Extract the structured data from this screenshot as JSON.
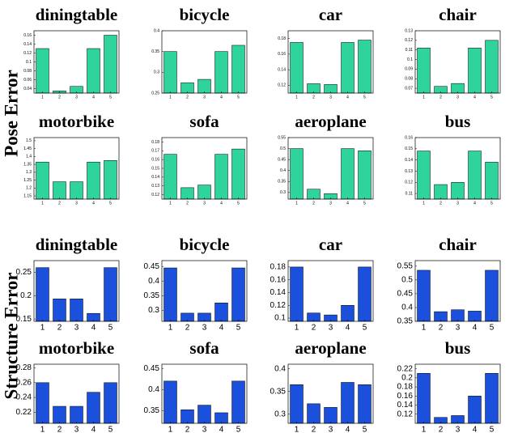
{
  "row_labels": [
    "Pose Error",
    "Structure Error"
  ],
  "chart_data": [
    {
      "type": "bar",
      "title": "diningtable",
      "categories": [
        "1",
        "2",
        "3",
        "4",
        "5"
      ],
      "values": [
        0.13,
        0.035,
        0.045,
        0.13,
        0.16
      ],
      "color": "#2fd39c",
      "ylim": [
        0.03,
        0.17
      ],
      "yticks": [
        0.04,
        0.06,
        0.08,
        0.1,
        0.12,
        0.14,
        0.16
      ]
    },
    {
      "type": "bar",
      "title": "bicycle",
      "categories": [
        "1",
        "2",
        "3",
        "4",
        "5"
      ],
      "values": [
        0.35,
        0.275,
        0.283,
        0.35,
        0.365
      ],
      "color": "#2fd39c",
      "ylim": [
        0.25,
        0.4
      ],
      "yticks": [
        0.25,
        0.3,
        0.35,
        0.4
      ]
    },
    {
      "type": "bar",
      "title": "car",
      "categories": [
        "1",
        "2",
        "3",
        "4",
        "5"
      ],
      "values": [
        0.175,
        0.122,
        0.121,
        0.175,
        0.178
      ],
      "color": "#2fd39c",
      "ylim": [
        0.11,
        0.19
      ],
      "yticks": [
        0.12,
        0.14,
        0.16,
        0.18
      ]
    },
    {
      "type": "bar",
      "title": "chair",
      "categories": [
        "1",
        "2",
        "3",
        "4",
        "5"
      ],
      "values": [
        0.112,
        0.072,
        0.075,
        0.112,
        0.12
      ],
      "color": "#2fd39c",
      "ylim": [
        0.065,
        0.13
      ],
      "yticks": [
        0.07,
        0.08,
        0.09,
        0.1,
        0.11,
        0.12,
        0.13
      ]
    },
    {
      "type": "bar",
      "title": "motorbike",
      "categories": [
        "1",
        "2",
        "3",
        "4",
        "5"
      ],
      "values": [
        1.365,
        1.24,
        1.24,
        1.365,
        1.375
      ],
      "color": "#2fd39c",
      "ylim": [
        1.13,
        1.52
      ],
      "yticks": [
        1.15,
        1.2,
        1.25,
        1.3,
        1.35,
        1.4,
        1.45,
        1.5
      ]
    },
    {
      "type": "bar",
      "title": "sofa",
      "categories": [
        "1",
        "2",
        "3",
        "4",
        "5"
      ],
      "values": [
        0.166,
        0.128,
        0.131,
        0.166,
        0.172
      ],
      "color": "#2fd39c",
      "ylim": [
        0.115,
        0.185
      ],
      "yticks": [
        0.12,
        0.13,
        0.14,
        0.15,
        0.16,
        0.17,
        0.18
      ]
    },
    {
      "type": "bar",
      "title": "aeroplane",
      "categories": [
        "1",
        "2",
        "3",
        "4",
        "5"
      ],
      "values": [
        0.5,
        0.315,
        0.295,
        0.5,
        0.49
      ],
      "color": "#2fd39c",
      "ylim": [
        0.27,
        0.55
      ],
      "yticks": [
        0.3,
        0.35,
        0.4,
        0.45,
        0.5,
        0.55
      ]
    },
    {
      "type": "bar",
      "title": "bus",
      "categories": [
        "1",
        "2",
        "3",
        "4",
        "5"
      ],
      "values": [
        0.148,
        0.118,
        0.12,
        0.148,
        0.138
      ],
      "color": "#2fd39c",
      "ylim": [
        0.105,
        0.16
      ],
      "yticks": [
        0.11,
        0.12,
        0.13,
        0.14,
        0.15,
        0.16
      ]
    },
    {
      "type": "bar",
      "title": "diningtable",
      "categories": [
        "1",
        "2",
        "3",
        "4",
        "5"
      ],
      "values": [
        0.26,
        0.193,
        0.193,
        0.162,
        0.26
      ],
      "color": "#1a50dc",
      "ylim": [
        0.145,
        0.275
      ],
      "yticks": [
        0.15,
        0.2,
        0.25
      ]
    },
    {
      "type": "bar",
      "title": "bicycle",
      "categories": [
        "1",
        "2",
        "3",
        "4",
        "5"
      ],
      "values": [
        0.445,
        0.29,
        0.29,
        0.325,
        0.445
      ],
      "color": "#1a50dc",
      "ylim": [
        0.262,
        0.47
      ],
      "yticks": [
        0.3,
        0.35,
        0.4,
        0.45
      ]
    },
    {
      "type": "bar",
      "title": "car",
      "categories": [
        "1",
        "2",
        "3",
        "4",
        "5"
      ],
      "values": [
        0.18,
        0.108,
        0.105,
        0.12,
        0.18
      ],
      "color": "#1a50dc",
      "ylim": [
        0.095,
        0.19
      ],
      "yticks": [
        0.1,
        0.12,
        0.14,
        0.16,
        0.18
      ]
    },
    {
      "type": "bar",
      "title": "chair",
      "categories": [
        "1",
        "2",
        "3",
        "4",
        "5"
      ],
      "values": [
        0.535,
        0.385,
        0.392,
        0.387,
        0.535
      ],
      "color": "#1a50dc",
      "ylim": [
        0.35,
        0.57
      ],
      "yticks": [
        0.35,
        0.4,
        0.45,
        0.5,
        0.55
      ]
    },
    {
      "type": "bar",
      "title": "motorbike",
      "categories": [
        "1",
        "2",
        "3",
        "4",
        "5"
      ],
      "values": [
        0.26,
        0.228,
        0.228,
        0.247,
        0.26
      ],
      "color": "#1a50dc",
      "ylim": [
        0.205,
        0.285
      ],
      "yticks": [
        0.22,
        0.24,
        0.26,
        0.28
      ]
    },
    {
      "type": "bar",
      "title": "sofa",
      "categories": [
        "1",
        "2",
        "3",
        "4",
        "5"
      ],
      "values": [
        0.42,
        0.352,
        0.363,
        0.345,
        0.42
      ],
      "color": "#1a50dc",
      "ylim": [
        0.32,
        0.46
      ],
      "yticks": [
        0.35,
        0.4,
        0.45
      ]
    },
    {
      "type": "bar",
      "title": "aeroplane",
      "categories": [
        "1",
        "2",
        "3",
        "4",
        "5"
      ],
      "values": [
        0.365,
        0.323,
        0.315,
        0.37,
        0.365
      ],
      "color": "#1a50dc",
      "ylim": [
        0.28,
        0.41
      ],
      "yticks": [
        0.3,
        0.35,
        0.4
      ]
    },
    {
      "type": "bar",
      "title": "bus",
      "categories": [
        "1",
        "2",
        "3",
        "4",
        "5"
      ],
      "values": [
        0.21,
        0.113,
        0.117,
        0.16,
        0.21
      ],
      "color": "#1a50dc",
      "ylim": [
        0.1,
        0.23
      ],
      "yticks": [
        0.12,
        0.14,
        0.16,
        0.18,
        0.2,
        0.22
      ]
    }
  ]
}
